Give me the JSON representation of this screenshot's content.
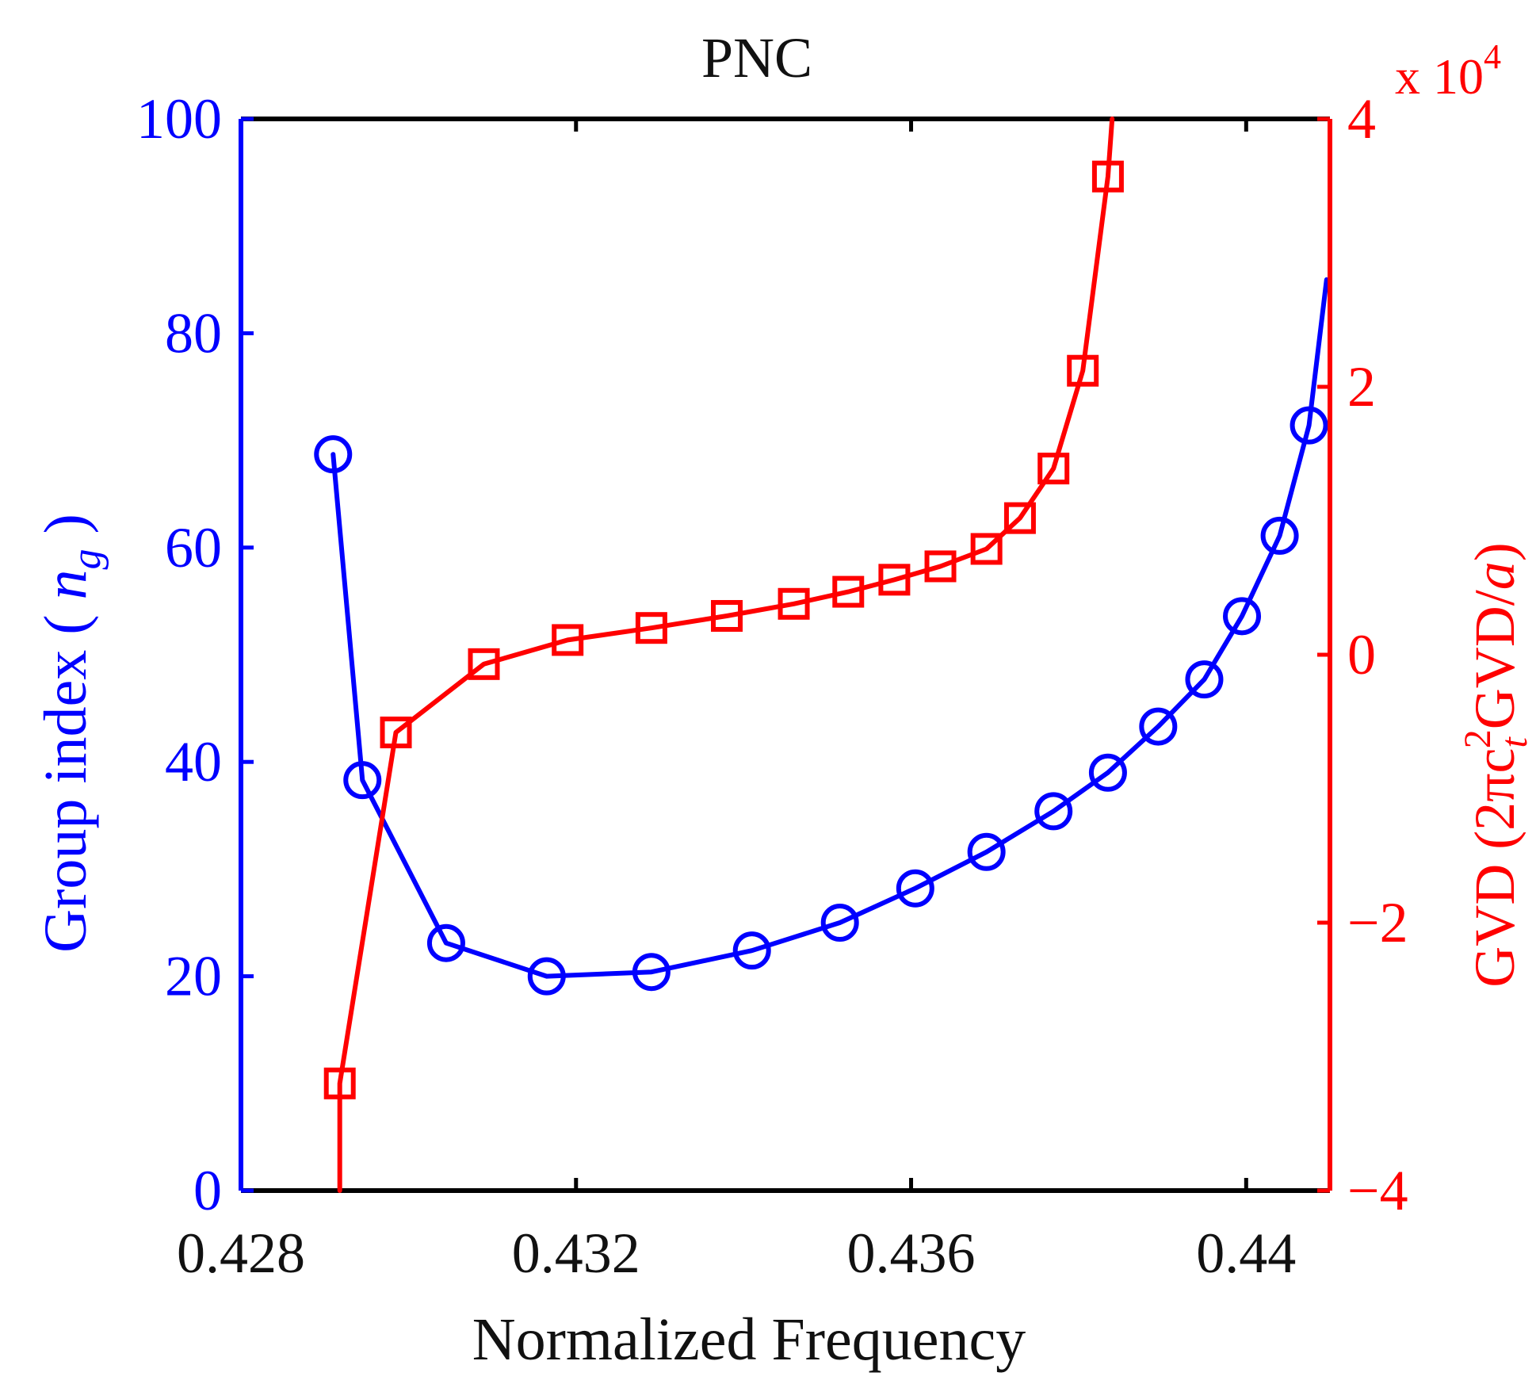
{
  "chart_data": {
    "type": "line",
    "title": "PNC",
    "xlabel": "Normalized Frequency",
    "xlim": [
      0.428,
      0.441
    ],
    "xticks": [
      {
        "value": 0.428,
        "label": "0.428"
      },
      {
        "value": 0.432,
        "label": "0.432"
      },
      {
        "value": 0.436,
        "label": "0.436"
      },
      {
        "value": 0.44,
        "label": "0.44"
      }
    ],
    "y_left": {
      "label_main": "Group index ( ",
      "label_var": "n",
      "label_sub": "g",
      "label_close": " )",
      "ylim": [
        0,
        100
      ],
      "ticks": [
        {
          "value": 0,
          "label": "0"
        },
        {
          "value": 20,
          "label": "20"
        },
        {
          "value": 40,
          "label": "40"
        },
        {
          "value": 60,
          "label": "60"
        },
        {
          "value": 80,
          "label": "80"
        },
        {
          "value": 100,
          "label": "100"
        }
      ],
      "color": "#0000ff"
    },
    "y_right": {
      "label_prefix": "GVD (2πc",
      "label_sub": "t",
      "label_sup": "2",
      "label_mid": "GVD/",
      "label_var": "a",
      "label_close": ")",
      "ylim": [
        -4,
        4
      ],
      "ticks": [
        {
          "value": -4,
          "label": "−4"
        },
        {
          "value": -2,
          "label": "−2"
        },
        {
          "value": 0,
          "label": "0"
        },
        {
          "value": 2,
          "label": "2"
        },
        {
          "value": 4,
          "label": "4"
        }
      ],
      "multiplier_base": "x 10",
      "multiplier_exp": "4",
      "color": "#ff0000"
    },
    "series": [
      {
        "name": "Group index",
        "axis": "left",
        "marker": "circle",
        "color": "#0000ff",
        "points": [
          [
            0.4291,
            68.7
          ],
          [
            0.42945,
            38.3
          ],
          [
            0.43045,
            23.1
          ],
          [
            0.43165,
            20.0
          ],
          [
            0.4329,
            20.4
          ],
          [
            0.4341,
            22.4
          ],
          [
            0.43515,
            25.0
          ],
          [
            0.43605,
            28.2
          ],
          [
            0.4369,
            31.6
          ],
          [
            0.4377,
            35.4
          ],
          [
            0.43835,
            39.0
          ],
          [
            0.43895,
            43.3
          ],
          [
            0.4395,
            47.7
          ],
          [
            0.43995,
            53.6
          ],
          [
            0.4404,
            61.1
          ],
          [
            0.44075,
            71.4
          ]
        ],
        "curve_start": [
          0.4291,
          68.7
        ],
        "curve_end": [
          0.44096,
          85.0
        ]
      },
      {
        "name": "GVD",
        "axis": "right",
        "marker": "square",
        "color": "#ff0000",
        "points": [
          [
            0.42918,
            -3.2
          ],
          [
            0.42985,
            -0.58
          ],
          [
            0.4309,
            -0.07
          ],
          [
            0.4319,
            0.11
          ],
          [
            0.4329,
            0.2
          ],
          [
            0.4338,
            0.29
          ],
          [
            0.4346,
            0.38
          ],
          [
            0.43525,
            0.47
          ],
          [
            0.4358,
            0.56
          ],
          [
            0.43635,
            0.66
          ],
          [
            0.4369,
            0.79
          ],
          [
            0.4373,
            1.02
          ],
          [
            0.4377,
            1.39
          ],
          [
            0.43805,
            2.12
          ],
          [
            0.43835,
            3.57
          ]
        ],
        "curve_start": [
          0.42918,
          -4.0
        ],
        "curve_end": [
          0.4384,
          4.0
        ]
      }
    ]
  }
}
